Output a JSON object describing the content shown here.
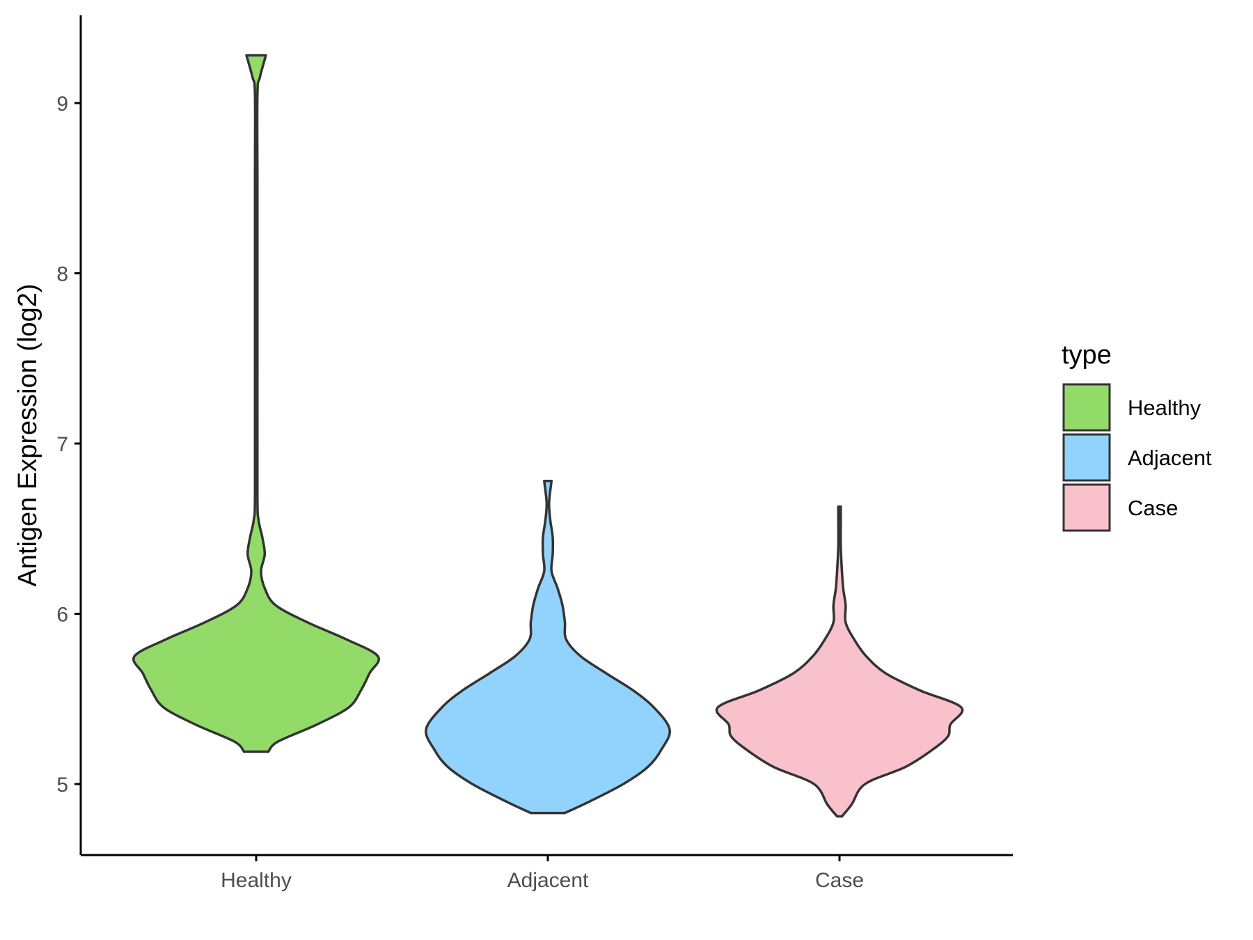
{
  "chart_data": {
    "type": "violin",
    "ylabel": "Antigen Expression (log2)",
    "xlabel": "",
    "categories": [
      "Healthy",
      "Adjacent",
      "Case"
    ],
    "yticks": [
      5,
      6,
      7,
      8,
      9
    ],
    "ylim": [
      4.6,
      9.5
    ],
    "legend": {
      "title": "type",
      "position": "right",
      "entries": [
        {
          "label": "Healthy",
          "color": "#93DB69"
        },
        {
          "label": "Adjacent",
          "color": "#92D3FE"
        },
        {
          "label": "Case",
          "color": "#F8C1CC"
        }
      ]
    },
    "series": [
      {
        "category": "Healthy",
        "color": "#93DB69",
        "density": [
          [
            5.19,
            0.1
          ],
          [
            5.25,
            0.18
          ],
          [
            5.35,
            0.5
          ],
          [
            5.45,
            0.76
          ],
          [
            5.55,
            0.86
          ],
          [
            5.65,
            0.93
          ],
          [
            5.75,
            1.0
          ],
          [
            5.85,
            0.74
          ],
          [
            5.95,
            0.42
          ],
          [
            6.05,
            0.16
          ],
          [
            6.15,
            0.07
          ],
          [
            6.25,
            0.04
          ],
          [
            6.35,
            0.07
          ],
          [
            6.45,
            0.05
          ],
          [
            6.55,
            0.02
          ],
          [
            6.7,
            0.01
          ],
          [
            7.5,
            0.01
          ],
          [
            8.5,
            0.01
          ],
          [
            9.05,
            0.01
          ],
          [
            9.15,
            0.03
          ],
          [
            9.28,
            0.08
          ]
        ]
      },
      {
        "category": "Adjacent",
        "color": "#92D3FE",
        "density": [
          [
            4.83,
            0.14
          ],
          [
            4.9,
            0.35
          ],
          [
            5.0,
            0.62
          ],
          [
            5.1,
            0.82
          ],
          [
            5.2,
            0.93
          ],
          [
            5.32,
            1.0
          ],
          [
            5.45,
            0.87
          ],
          [
            5.55,
            0.7
          ],
          [
            5.65,
            0.48
          ],
          [
            5.75,
            0.27
          ],
          [
            5.85,
            0.15
          ],
          [
            5.95,
            0.14
          ],
          [
            6.05,
            0.12
          ],
          [
            6.15,
            0.08
          ],
          [
            6.25,
            0.03
          ],
          [
            6.35,
            0.04
          ],
          [
            6.45,
            0.04
          ],
          [
            6.55,
            0.02
          ],
          [
            6.65,
            0.01
          ],
          [
            6.78,
            0.03
          ]
        ]
      },
      {
        "category": "Case",
        "color": "#F8C1CC",
        "density": [
          [
            4.81,
            0.02
          ],
          [
            4.88,
            0.1
          ],
          [
            5.0,
            0.21
          ],
          [
            5.1,
            0.54
          ],
          [
            5.2,
            0.76
          ],
          [
            5.28,
            0.89
          ],
          [
            5.35,
            0.91
          ],
          [
            5.45,
            1.0
          ],
          [
            5.55,
            0.66
          ],
          [
            5.65,
            0.38
          ],
          [
            5.75,
            0.22
          ],
          [
            5.85,
            0.12
          ],
          [
            5.95,
            0.05
          ],
          [
            6.05,
            0.05
          ],
          [
            6.15,
            0.03
          ],
          [
            6.25,
            0.02
          ],
          [
            6.4,
            0.01
          ],
          [
            6.55,
            0.01
          ],
          [
            6.63,
            0.01
          ]
        ]
      }
    ]
  }
}
